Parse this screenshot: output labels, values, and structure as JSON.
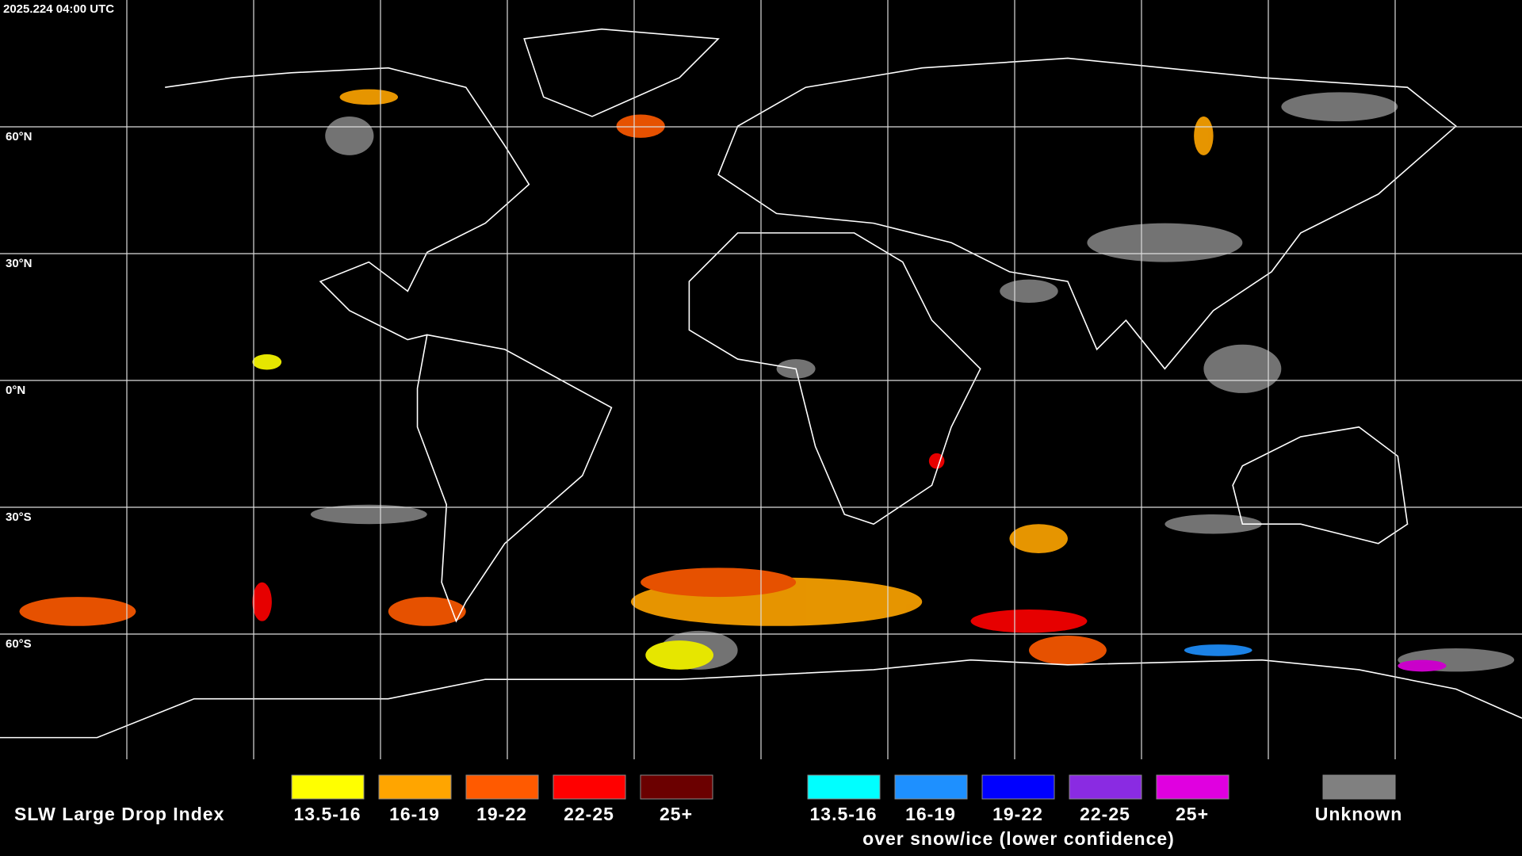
{
  "header": {
    "timestamp": "2025.224 04:00 UTC"
  },
  "grid": {
    "latitude_labels": [
      "60°N",
      "30°N",
      "0°N",
      "30°S",
      "60°S"
    ]
  },
  "legend": {
    "title": "SLW Large Drop Index",
    "items": [
      {
        "label": "13.5-16",
        "color": "#ffff00"
      },
      {
        "label": "16-19",
        "color": "#ffa500"
      },
      {
        "label": "19-22",
        "color": "#ff5a00"
      },
      {
        "label": "22-25",
        "color": "#ff0000"
      },
      {
        "label": "25+",
        "color": "#6b0000"
      }
    ],
    "snow_items": [
      {
        "label": "13.5-16",
        "color": "#00ffff"
      },
      {
        "label": "16-19",
        "color": "#1e90ff"
      },
      {
        "label": "19-22",
        "color": "#0000ff"
      },
      {
        "label": "22-25",
        "color": "#8a2be2"
      },
      {
        "label": "25+",
        "color": "#e000e0"
      }
    ],
    "snow_note": "over snow/ice (lower confidence)",
    "unknown": {
      "label": "Unknown",
      "color": "#808080"
    }
  }
}
